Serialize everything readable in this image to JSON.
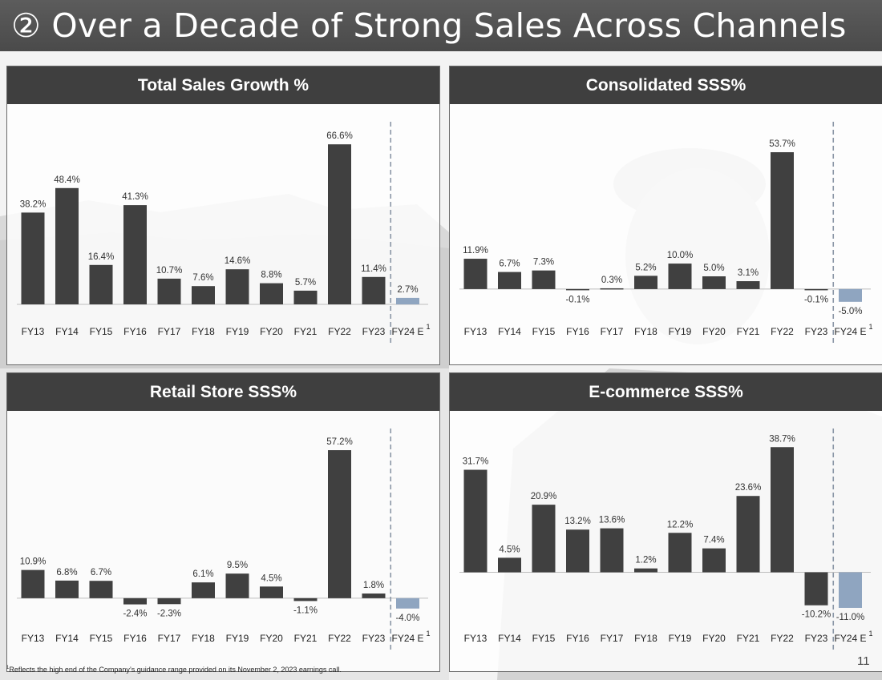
{
  "slide": {
    "title": "② Over a Decade of Strong Sales Across Channels",
    "footnote_mark": "1",
    "footnote_text": "Reflects the high end of the Company’s guidance range provided on its November 2, 2023 earnings call.",
    "page_number": "11"
  },
  "colors": {
    "bar": "#404040",
    "estimate_bar": "#8fa5c0",
    "divider": "#8a96a6",
    "header": "#3f3f3f"
  },
  "chart_data": [
    {
      "type": "bar",
      "title": "Total Sales Growth %",
      "categories": [
        "FY13",
        "FY14",
        "FY15",
        "FY16",
        "FY17",
        "FY18",
        "FY19",
        "FY20",
        "FY21",
        "FY22",
        "FY23",
        "FY24 E"
      ],
      "values": [
        38.2,
        48.4,
        16.4,
        41.3,
        10.7,
        7.6,
        14.6,
        8.8,
        5.7,
        66.6,
        11.4,
        2.7
      ],
      "labels": [
        "38.2%",
        "48.4%",
        "16.4%",
        "41.3%",
        "10.7%",
        "7.6%",
        "14.6%",
        "8.8%",
        "5.7%",
        "66.6%",
        "11.4%",
        "2.7%"
      ],
      "estimate_superscript": "1",
      "ylim": [
        0,
        70
      ]
    },
    {
      "type": "bar",
      "title": "Consolidated SSS%",
      "categories": [
        "FY13",
        "FY14",
        "FY15",
        "FY16",
        "FY17",
        "FY18",
        "FY19",
        "FY20",
        "FY21",
        "FY22",
        "FY23",
        "FY24 E"
      ],
      "values": [
        11.9,
        6.7,
        7.3,
        -0.1,
        0.3,
        5.2,
        10.0,
        5.0,
        3.1,
        53.7,
        -0.1,
        -5.0
      ],
      "labels": [
        "11.9%",
        "6.7%",
        "7.3%",
        "-0.1%",
        "0.3%",
        "5.2%",
        "10.0%",
        "5.0%",
        "3.1%",
        "53.7%",
        "-0.1%",
        "-5.0%"
      ],
      "estimate_superscript": "1",
      "ylim": [
        -6,
        60
      ]
    },
    {
      "type": "bar",
      "title": "Retail Store SSS%",
      "categories": [
        "FY13",
        "FY14",
        "FY15",
        "FY16",
        "FY17",
        "FY18",
        "FY19",
        "FY20",
        "FY21",
        "FY22",
        "FY23",
        "FY24 E"
      ],
      "values": [
        10.9,
        6.8,
        6.7,
        -2.4,
        -2.3,
        6.1,
        9.5,
        4.5,
        -1.1,
        57.2,
        1.8,
        -4.0
      ],
      "labels": [
        "10.9%",
        "6.8%",
        "6.7%",
        "-2.4%",
        "-2.3%",
        "6.1%",
        "9.5%",
        "4.5%",
        "-1.1%",
        "57.2%",
        "1.8%",
        "-4.0%"
      ],
      "estimate_superscript": "1",
      "ylim": [
        -5,
        60
      ]
    },
    {
      "type": "bar",
      "title": "E-commerce SSS%",
      "categories": [
        "FY13",
        "FY14",
        "FY15",
        "FY16",
        "FY17",
        "FY18",
        "FY19",
        "FY20",
        "FY21",
        "FY22",
        "FY23",
        "FY24 E"
      ],
      "values": [
        31.7,
        4.5,
        20.9,
        13.2,
        13.6,
        1.2,
        12.2,
        7.4,
        23.6,
        38.7,
        -10.2,
        -11.0
      ],
      "labels": [
        "31.7%",
        "4.5%",
        "20.9%",
        "13.2%",
        "13.6%",
        "1.2%",
        "12.2%",
        "7.4%",
        "23.6%",
        "38.7%",
        "-10.2%",
        "-11.0%"
      ],
      "estimate_superscript": "1",
      "ylim": [
        -12,
        40
      ]
    }
  ]
}
